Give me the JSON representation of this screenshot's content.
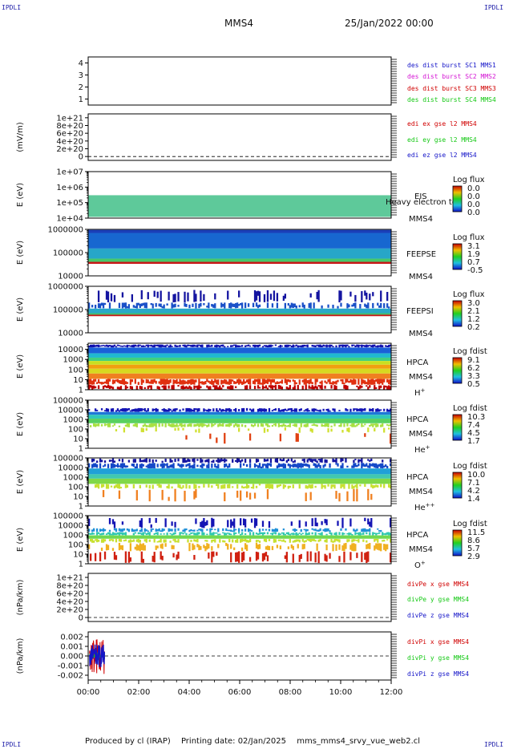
{
  "corner_label": "IPDLI",
  "header": {
    "spacecraft": "MMS4",
    "date": "25/Jan/2022 00:00"
  },
  "footer": {
    "produced_by": "Produced by cl (IRAP)",
    "printing_date": "Printing date: 02/Jan/2025",
    "filename": "mms_mms4_srvy_vue_web2.cl"
  },
  "colors": {
    "frame": "#000000",
    "blue": "#1414c8",
    "magenta": "#d414d4",
    "red": "#d00000",
    "green": "#14c814"
  },
  "chart_data": [
    {
      "type": "line",
      "panel": "dist_burst",
      "ylim": [
        0.5,
        4.5
      ],
      "yticks": [
        "1",
        "2",
        "3",
        "4"
      ],
      "ytick_values": [
        1,
        2,
        3,
        4
      ],
      "series": [
        {
          "name": "des dist burst SC1 MMS1",
          "values": []
        },
        {
          "name": "des dist burst SC2 MMS2",
          "values": []
        },
        {
          "name": "des dist burst SC3 MMS3",
          "values": []
        },
        {
          "name": "des dist burst SC4 MMS4",
          "values": []
        }
      ]
    },
    {
      "type": "line",
      "panel": "edi_e",
      "ylabel": "(mV/m)",
      "ylim": [
        -1e+20,
        1.1e+21
      ],
      "yticks": [
        "0",
        "2e+20",
        "4e+20",
        "6e+20",
        "8e+20",
        "1e+21"
      ],
      "ytick_values": [
        0,
        2e+20,
        4e+20,
        6e+20,
        8e+20,
        1e+21
      ],
      "series": [
        {
          "name": "edi ex gse l2 MMS4",
          "values": []
        },
        {
          "name": "edi ey gse l2 MMS4",
          "values": []
        },
        {
          "name": "edi ez gse l2 MMS4",
          "values": []
        }
      ]
    },
    {
      "type": "heatmap",
      "panel": "eis",
      "ylabel": "E (eV)",
      "ylim": [
        10000.0,
        10000000.0
      ],
      "yticks": [
        "1e+04",
        "1e+05",
        "1e+06",
        "1e+07"
      ],
      "ytick_values": [
        10000.0,
        100000.0,
        1000000.0,
        10000000.0
      ],
      "instrument": "EIS",
      "species": "",
      "mms": "MMS4",
      "overlay_label": "Heavy electron to",
      "colorbar": {
        "title": "Log flux",
        "ticks": [
          "0.0",
          "0.0",
          "0.0",
          "0.0"
        ]
      },
      "bands": [
        {
          "emin": 12000.0,
          "emax": 300000.0,
          "color": "#5ec99a",
          "density": 1.0
        }
      ]
    },
    {
      "type": "heatmap",
      "panel": "feepse",
      "ylabel": "E (eV)",
      "ylim": [
        10000,
        1000000
      ],
      "yticks": [
        "10000",
        "100000",
        "1000000"
      ],
      "ytick_values": [
        10000,
        100000,
        1000000
      ],
      "instrument": "FEEPSE",
      "species": "",
      "mms": "MMS4",
      "colorbar": {
        "title": "Log flux",
        "ticks": [
          "3.1",
          "1.9",
          "0.7",
          "-0.5"
        ]
      },
      "bands": [
        {
          "emin": 700000,
          "emax": 950000,
          "color": "#1a3fb8",
          "density": 1.0
        },
        {
          "emin": 150000,
          "emax": 700000,
          "color": "#1767d0",
          "density": 1.0
        },
        {
          "emin": 55000,
          "emax": 150000,
          "color": "#27a6c8",
          "density": 1.0
        },
        {
          "emin": 40000,
          "emax": 55000,
          "color": "#46c86a",
          "density": 1.0
        },
        {
          "emin": 33000,
          "emax": 40000,
          "color": "#c81414",
          "density": 1.0
        }
      ]
    },
    {
      "type": "heatmap",
      "panel": "feepsi",
      "ylabel": "E (eV)",
      "ylim": [
        10000,
        1000000
      ],
      "yticks": [
        "10000",
        "100000",
        "1000000"
      ],
      "ytick_values": [
        10000,
        100000,
        1000000
      ],
      "instrument": "FEEPSI",
      "species": "",
      "mms": "MMS4",
      "colorbar": {
        "title": "Log flux",
        "ticks": [
          "3.0",
          "2.1",
          "1.2",
          "0.2"
        ]
      },
      "bands": [
        {
          "emin": 200000,
          "emax": 700000,
          "color": "#1414a0",
          "density": 0.3
        },
        {
          "emin": 110000,
          "emax": 200000,
          "color": "#1a50c8",
          "density": 0.6
        },
        {
          "emin": 70000,
          "emax": 110000,
          "color": "#2aa8c8",
          "density": 1.0
        },
        {
          "emin": 60000,
          "emax": 70000,
          "color": "#40c070",
          "density": 1.0
        },
        {
          "emin": 52000,
          "emax": 60000,
          "color": "#c81414",
          "density": 1.0
        }
      ]
    },
    {
      "type": "heatmap",
      "panel": "hpca_h",
      "ylabel": "E (eV)",
      "ylim": [
        1,
        40000
      ],
      "yticks": [
        "1",
        "10",
        "100",
        "1000",
        "10000"
      ],
      "ytick_values": [
        1,
        10,
        100,
        1000,
        10000
      ],
      "instrument": "HPCA",
      "species": "H",
      "species_sup": "+",
      "mms": "MMS4",
      "colorbar": {
        "title": "Log fdist",
        "ticks": [
          "9.1",
          "6.2",
          "3.3",
          "0.5"
        ]
      },
      "bands": [
        {
          "emin": 15000,
          "emax": 30000,
          "color": "#1010b0",
          "density": 0.9
        },
        {
          "emin": 4000,
          "emax": 15000,
          "color": "#1a60d8",
          "density": 1.0
        },
        {
          "emin": 1500,
          "emax": 4000,
          "color": "#20b8d0",
          "density": 1.0
        },
        {
          "emin": 700,
          "emax": 1500,
          "color": "#40d080",
          "density": 1.0
        },
        {
          "emin": 300,
          "emax": 700,
          "color": "#c8e020",
          "density": 1.0
        },
        {
          "emin": 120,
          "emax": 300,
          "color": "#f0a010",
          "density": 1.0
        },
        {
          "emin": 40,
          "emax": 120,
          "color": "#d8d820",
          "density": 1.0
        },
        {
          "emin": 12,
          "emax": 40,
          "color": "#f08020",
          "density": 1.0
        },
        {
          "emin": 3,
          "emax": 12,
          "color": "#e03010",
          "density": 0.9
        },
        {
          "emin": 1,
          "emax": 3,
          "color": "#c00000",
          "density": 0.6
        }
      ]
    },
    {
      "type": "heatmap",
      "panel": "hpca_he",
      "ylabel": "E (eV)",
      "ylim": [
        1,
        100000
      ],
      "yticks": [
        "1",
        "10",
        "100",
        "1000",
        "10000",
        "100000"
      ],
      "ytick_values": [
        1,
        10,
        100,
        1000,
        10000,
        100000
      ],
      "instrument": "HPCA",
      "species": "He",
      "species_sup": "+",
      "mms": "MMS4",
      "colorbar": {
        "title": "Log fdist",
        "ticks": [
          "10.3",
          "7.4",
          "4.5",
          "1.7"
        ]
      },
      "bands": [
        {
          "emin": 6000,
          "emax": 15000,
          "color": "#1414b4",
          "density": 0.8
        },
        {
          "emin": 3000,
          "emax": 6000,
          "color": "#1e78d8",
          "density": 1.0
        },
        {
          "emin": 1200,
          "emax": 3000,
          "color": "#30c8b8",
          "density": 1.0
        },
        {
          "emin": 400,
          "emax": 1200,
          "color": "#58d060",
          "density": 1.0
        },
        {
          "emin": 150,
          "emax": 400,
          "color": "#a8e040",
          "density": 0.7
        },
        {
          "emin": 40,
          "emax": 150,
          "color": "#d0e030",
          "density": 0.15
        },
        {
          "emin": 3,
          "emax": 40,
          "color": "#e04010",
          "density": 0.06
        }
      ]
    },
    {
      "type": "heatmap",
      "panel": "hpca_hepp",
      "ylabel": "E (eV)",
      "ylim": [
        1,
        100000
      ],
      "yticks": [
        "1",
        "10",
        "100",
        "1000",
        "10000",
        "100000"
      ],
      "ytick_values": [
        1,
        10,
        100,
        1000,
        10000,
        100000
      ],
      "instrument": "HPCA",
      "species": "He",
      "species_sup": "++",
      "mms": "MMS4",
      "colorbar": {
        "title": "Log fdist",
        "ticks": [
          "10.0",
          "7.1",
          "4.2",
          "1.4"
        ]
      },
      "bands": [
        {
          "emin": 30000,
          "emax": 90000,
          "color": "#1414a0",
          "density": 0.55
        },
        {
          "emin": 8000,
          "emax": 30000,
          "color": "#1448c8",
          "density": 0.7
        },
        {
          "emin": 2000,
          "emax": 8000,
          "color": "#20a0d8",
          "density": 1.0
        },
        {
          "emin": 700,
          "emax": 2000,
          "color": "#40c8b0",
          "density": 1.0
        },
        {
          "emin": 200,
          "emax": 700,
          "color": "#80d848",
          "density": 1.0
        },
        {
          "emin": 60,
          "emax": 200,
          "color": "#c8e030",
          "density": 0.5
        },
        {
          "emin": 3,
          "emax": 60,
          "color": "#f08020",
          "density": 0.12
        }
      ]
    },
    {
      "type": "heatmap",
      "panel": "hpca_o",
      "ylabel": "E (eV)",
      "ylim": [
        1,
        100000
      ],
      "yticks": [
        "1",
        "10",
        "100",
        "1000",
        "10000",
        "100000"
      ],
      "ytick_values": [
        1,
        10,
        100,
        1000,
        10000,
        100000
      ],
      "instrument": "HPCA",
      "species": "O",
      "species_sup": "+",
      "mms": "MMS4",
      "colorbar": {
        "title": "Log fdist",
        "ticks": [
          "11.5",
          "8.6",
          "5.7",
          "2.9"
        ]
      },
      "bands": [
        {
          "emin": 5000,
          "emax": 60000,
          "color": "#1414b4",
          "density": 0.25
        },
        {
          "emin": 2000,
          "emax": 5000,
          "color": "#2090d8",
          "density": 0.5
        },
        {
          "emin": 900,
          "emax": 2000,
          "color": "#30c8b0",
          "density": 0.8
        },
        {
          "emin": 400,
          "emax": 900,
          "color": "#70d850",
          "density": 1.0
        },
        {
          "emin": 150,
          "emax": 400,
          "color": "#c8e030",
          "density": 0.6
        },
        {
          "emin": 20,
          "emax": 150,
          "color": "#f0b020",
          "density": 0.35
        },
        {
          "emin": 1.2,
          "emax": 20,
          "color": "#d02010",
          "density": 0.3
        }
      ]
    },
    {
      "type": "line",
      "panel": "divpe",
      "ylabel": "(nPa/km)",
      "ylim": [
        -1e+20,
        1.1e+21
      ],
      "yticks": [
        "0",
        "2e+20",
        "4e+20",
        "6e+20",
        "8e+20",
        "1e+21"
      ],
      "ytick_values": [
        0,
        2e+20,
        4e+20,
        6e+20,
        8e+20,
        1e+21
      ],
      "series": [
        {
          "name": "divPe x gse MMS4",
          "values": []
        },
        {
          "name": "divPe y gse MMS4",
          "values": []
        },
        {
          "name": "divPe z gse MMS4",
          "values": []
        }
      ]
    },
    {
      "type": "line",
      "panel": "divpi",
      "ylabel": "(nPa/km)",
      "ylim": [
        -0.0025,
        0.0025
      ],
      "yticks": [
        "-0.002",
        "-0.001",
        "0.000",
        "0.001",
        "0.002"
      ],
      "ytick_values": [
        -0.002,
        -0.001,
        0,
        0.001,
        0.002
      ],
      "x_extent_hours": [
        0.05,
        0.65
      ],
      "series": [
        {
          "name": "divPi x gse MMS4",
          "amplitude": 0.0019
        },
        {
          "name": "divPi y gse MMS4",
          "amplitude": 0.0004
        },
        {
          "name": "divPi z gse MMS4",
          "amplitude": 0.0012
        }
      ]
    }
  ],
  "xaxis": {
    "ticks": [
      "00:00",
      "02:00",
      "04:00",
      "06:00",
      "08:00",
      "10:00",
      "12:00"
    ],
    "tick_hours": [
      0,
      2,
      4,
      6,
      8,
      10,
      12
    ],
    "range_hours": [
      0,
      12
    ]
  }
}
